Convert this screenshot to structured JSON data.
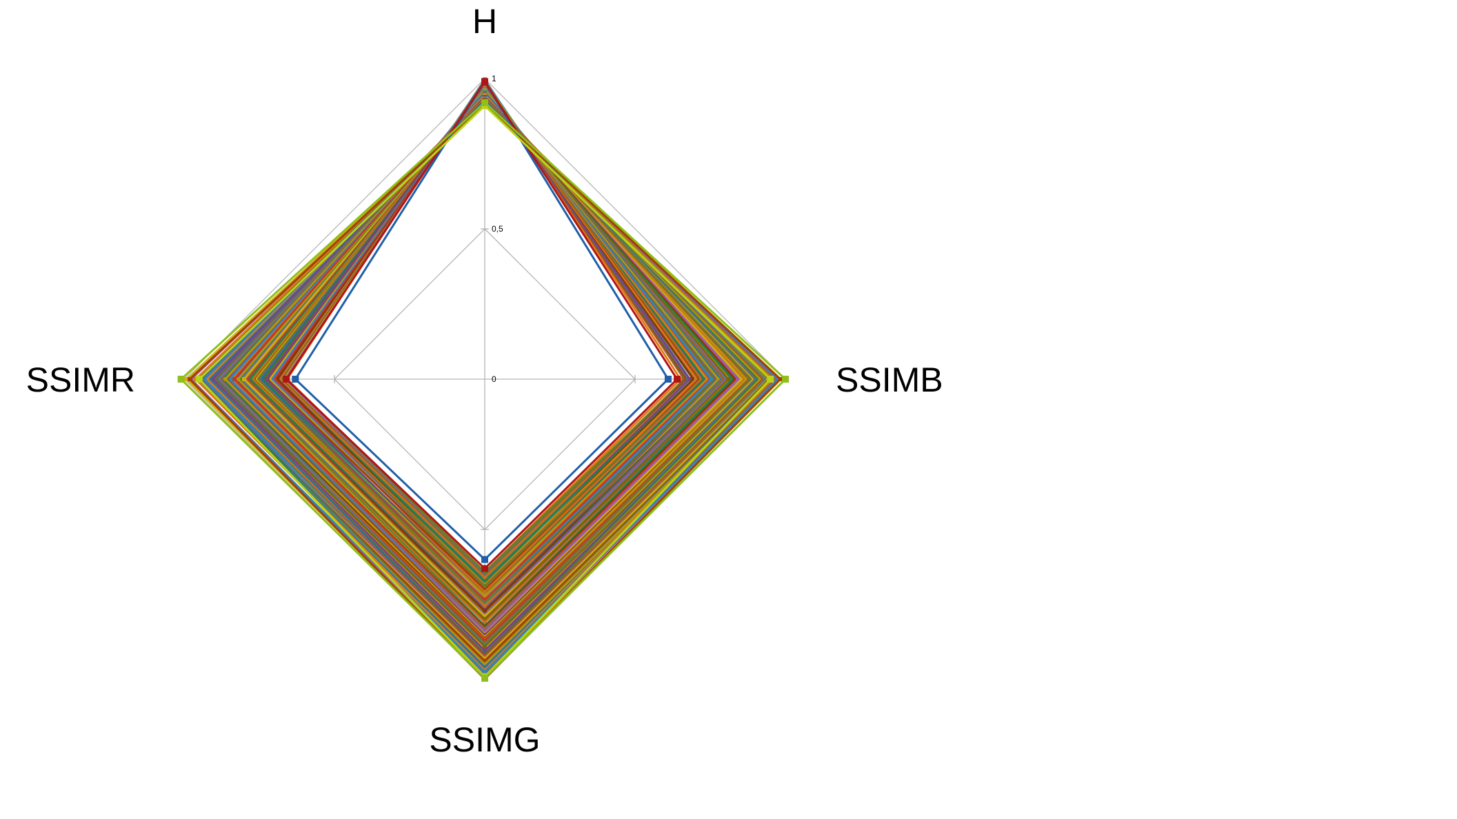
{
  "chart_data": {
    "type": "radar",
    "axes": [
      "H",
      "SSIMB",
      "SSIMG",
      "SSIMR"
    ],
    "tick_labels": [
      "0",
      "0,5",
      "1"
    ],
    "range": [
      0,
      1
    ],
    "grid": true,
    "legend": "none",
    "series_count_note": "",
    "highlight_series": [
      {
        "values": [
          0.99,
          0.61,
          0.6,
          0.63
        ],
        "color": "#1f5fa8"
      },
      {
        "values": [
          0.99,
          0.64,
          0.63,
          0.66
        ],
        "color": "#b01515"
      },
      {
        "values": [
          0.91,
          0.95,
          0.99,
          0.95
        ],
        "color": "#b9d417"
      },
      {
        "values": [
          0.92,
          1.0,
          0.995,
          1.01
        ],
        "color": "#8fbf1a"
      }
    ],
    "band": {
      "count": 120,
      "H_range": [
        0.92,
        0.995
      ],
      "SSIMB_range": [
        0.66,
        0.99
      ],
      "SSIMG_range": [
        0.64,
        0.99
      ],
      "SSIMR_range": [
        0.66,
        0.99
      ],
      "palette": [
        "#e07b10",
        "#c0392b",
        "#8b6b3a",
        "#6b7a2a",
        "#9b59b6",
        "#2e86c1",
        "#d4ac0d",
        "#a04000",
        "#7d6608",
        "#5d6d7e",
        "#ca6f1e",
        "#76448a",
        "#1e8449",
        "#b7950b",
        "#873600",
        "#2874a6"
      ]
    }
  }
}
